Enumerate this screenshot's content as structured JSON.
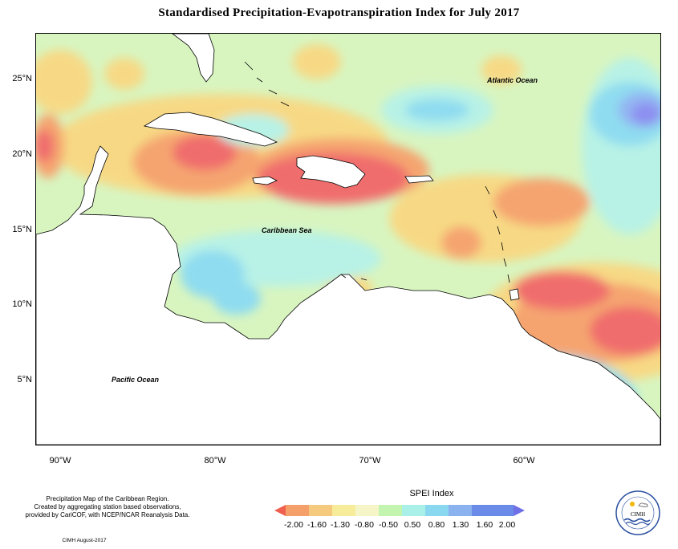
{
  "title": "Standardised Precipitation-Evapotranspiration Index for July 2017",
  "map": {
    "lat_labels": [
      "25°N",
      "20°N",
      "15°N",
      "10°N",
      "5°N"
    ],
    "lon_labels": [
      "90°W",
      "80°W",
      "70°W",
      "60°W"
    ],
    "ocean_labels": {
      "atlantic": "Atlantic Ocean",
      "caribbean": "Caribbean Sea",
      "pacific": "Pacific Ocean"
    },
    "colors": {
      "very_dry": "#f06d6d",
      "dry": "#f5a46f",
      "mod_dry": "#f7d985",
      "near_normal_dry": "#f7f5b5",
      "normal": "#d8f5c0",
      "mod_wet": "#b8f2e6",
      "wet": "#8fdcf0",
      "very_wet": "#93b6f2",
      "extreme_wet": "#8d8ff0",
      "land": "#ffffff"
    }
  },
  "caption": {
    "line1": "Precipitation Map of the Caribbean Region.",
    "line2": "Created by aggregating station based observations,",
    "line3": "provided by CariCOF, with NCEP/NCAR Reanalysis Data."
  },
  "credit": "CIMH August-2017",
  "legend": {
    "title": "SPEI Index",
    "ticks": [
      "-2.00",
      "-1.60",
      "-1.30",
      "-0.80",
      "-0.50",
      "0.50",
      "0.80",
      "1.30",
      "1.60",
      "2.00"
    ],
    "colors": [
      "#f0604f",
      "#f5a06a",
      "#f5c97e",
      "#f7ec9a",
      "#f5f5c8",
      "#c4f5b0",
      "#a8f0e8",
      "#8ad8f0",
      "#8ab2ee",
      "#6a8ce8",
      "#6f6fe6"
    ]
  },
  "logo": {
    "text": "CIMH"
  }
}
